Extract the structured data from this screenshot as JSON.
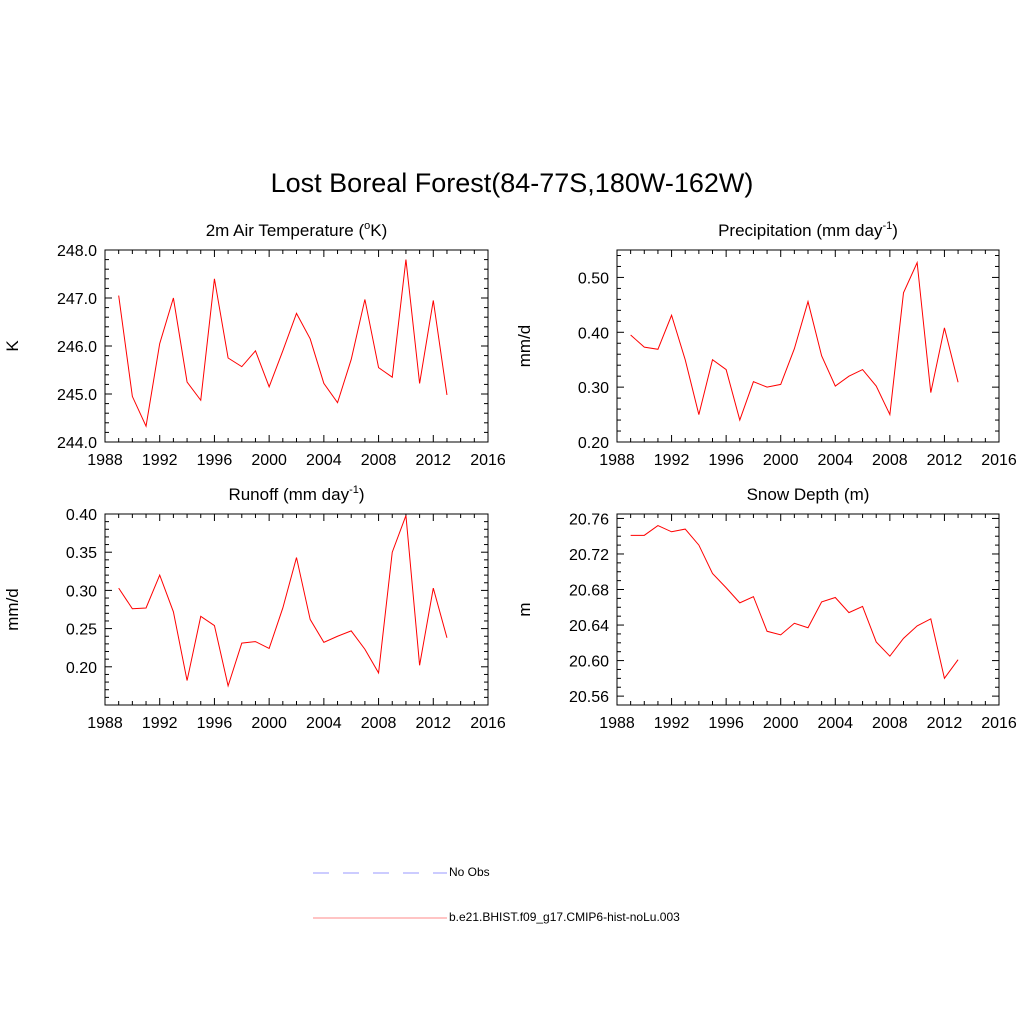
{
  "title": "Lost Boreal Forest(84-77S,180W-162W)",
  "colors": {
    "model": "#ff0000",
    "obs": "#9999ff",
    "axis": "#000000"
  },
  "legend": {
    "obs_label": "No Obs",
    "model_label": "b.e21.BHIST.f09_g17.CMIP6-hist-noLu.003"
  },
  "chart_data": [
    {
      "type": "line",
      "title": "2m Air Temperature (°K)",
      "title_base": "2m Air Temperature (",
      "title_sup": "o",
      "title_rest": "K)",
      "ylabel": "K",
      "xlim": [
        1988,
        2016
      ],
      "ylim": [
        244.0,
        248.0
      ],
      "x_ticks": [
        1988,
        1992,
        1996,
        2000,
        2004,
        2008,
        2012,
        2016
      ],
      "y_ticks": [
        244.0,
        245.0,
        246.0,
        247.0,
        248.0
      ],
      "y_decimals": 1,
      "y_minor": 0.2,
      "x": [
        1989,
        1990,
        1991,
        1992,
        1993,
        1994,
        1995,
        1996,
        1997,
        1998,
        1999,
        2000,
        2001,
        2002,
        2003,
        2004,
        2005,
        2006,
        2007,
        2008,
        2009,
        2010,
        2011,
        2012,
        2013
      ],
      "series": [
        {
          "name": "b.e21.BHIST.f09_g17.CMIP6-hist-noLu.003",
          "values": [
            247.05,
            244.95,
            244.33,
            246.05,
            247.0,
            245.25,
            244.87,
            247.4,
            245.75,
            245.57,
            245.9,
            245.15,
            245.9,
            246.68,
            246.15,
            245.22,
            244.82,
            245.72,
            246.97,
            245.55,
            245.35,
            247.8,
            245.22,
            246.95,
            244.98
          ]
        }
      ]
    },
    {
      "type": "line",
      "title": "Precipitation (mm day-1)",
      "title_base": "Precipitation (mm day",
      "title_sup": "-1",
      "title_rest": ")",
      "ylabel": "mm/d",
      "xlim": [
        1988,
        2016
      ],
      "ylim": [
        0.2,
        0.55
      ],
      "x_ticks": [
        1988,
        1992,
        1996,
        2000,
        2004,
        2008,
        2012,
        2016
      ],
      "y_ticks": [
        0.2,
        0.3,
        0.4,
        0.5
      ],
      "y_decimals": 2,
      "y_minor": 0.02,
      "x": [
        1989,
        1990,
        1991,
        1992,
        1993,
        1994,
        1995,
        1996,
        1997,
        1998,
        1999,
        2000,
        2001,
        2002,
        2003,
        2004,
        2005,
        2006,
        2007,
        2008,
        2009,
        2010,
        2011,
        2012,
        2013
      ],
      "series": [
        {
          "name": "b.e21.BHIST.f09_g17.CMIP6-hist-noLu.003",
          "values": [
            0.395,
            0.373,
            0.369,
            0.431,
            0.35,
            0.25,
            0.35,
            0.332,
            0.24,
            0.31,
            0.3,
            0.305,
            0.37,
            0.456,
            0.357,
            0.302,
            0.32,
            0.332,
            0.302,
            0.25,
            0.472,
            0.527,
            0.29,
            0.408,
            0.309
          ]
        }
      ]
    },
    {
      "type": "line",
      "title": "Runoff (mm day-1)",
      "title_base": "Runoff (mm day",
      "title_sup": "-1",
      "title_rest": ")",
      "ylabel": "mm/d",
      "xlim": [
        1988,
        2016
      ],
      "ylim": [
        0.15,
        0.4
      ],
      "x_ticks": [
        1988,
        1992,
        1996,
        2000,
        2004,
        2008,
        2012,
        2016
      ],
      "y_ticks": [
        0.2,
        0.25,
        0.3,
        0.35,
        0.4
      ],
      "y_decimals": 2,
      "y_minor": 0.01,
      "x": [
        1989,
        1990,
        1991,
        1992,
        1993,
        1994,
        1995,
        1996,
        1997,
        1998,
        1999,
        2000,
        2001,
        2002,
        2003,
        2004,
        2005,
        2006,
        2007,
        2008,
        2009,
        2010,
        2011,
        2012,
        2013
      ],
      "series": [
        {
          "name": "b.e21.BHIST.f09_g17.CMIP6-hist-noLu.003",
          "values": [
            0.303,
            0.276,
            0.277,
            0.32,
            0.272,
            0.182,
            0.266,
            0.254,
            0.175,
            0.231,
            0.233,
            0.224,
            0.277,
            0.343,
            0.262,
            0.232,
            0.24,
            0.247,
            0.223,
            0.192,
            0.35,
            0.398,
            0.202,
            0.303,
            0.238
          ]
        }
      ]
    },
    {
      "type": "line",
      "title": "Snow Depth (m)",
      "title_base": "Snow Depth (m)",
      "title_sup": "",
      "title_rest": "",
      "ylabel": "m",
      "xlim": [
        1988,
        2016
      ],
      "ylim": [
        20.55,
        20.765
      ],
      "x_ticks": [
        1988,
        1992,
        1996,
        2000,
        2004,
        2008,
        2012,
        2016
      ],
      "y_ticks": [
        20.56,
        20.6,
        20.64,
        20.68,
        20.72,
        20.76
      ],
      "y_decimals": 2,
      "y_minor": 0.01,
      "x": [
        1989,
        1990,
        1991,
        1992,
        1993,
        1994,
        1995,
        1996,
        1997,
        1998,
        1999,
        2000,
        2001,
        2002,
        2003,
        2004,
        2005,
        2006,
        2007,
        2008,
        2009,
        2010,
        2011,
        2012,
        2013
      ],
      "series": [
        {
          "name": "b.e21.BHIST.f09_g17.CMIP6-hist-noLu.003",
          "values": [
            20.741,
            20.741,
            20.752,
            20.745,
            20.748,
            20.73,
            20.698,
            20.682,
            20.665,
            20.672,
            20.633,
            20.629,
            20.642,
            20.637,
            20.666,
            20.671,
            20.654,
            20.661,
            20.621,
            20.605,
            20.625,
            20.639,
            20.647,
            20.58,
            20.601
          ]
        }
      ]
    }
  ]
}
